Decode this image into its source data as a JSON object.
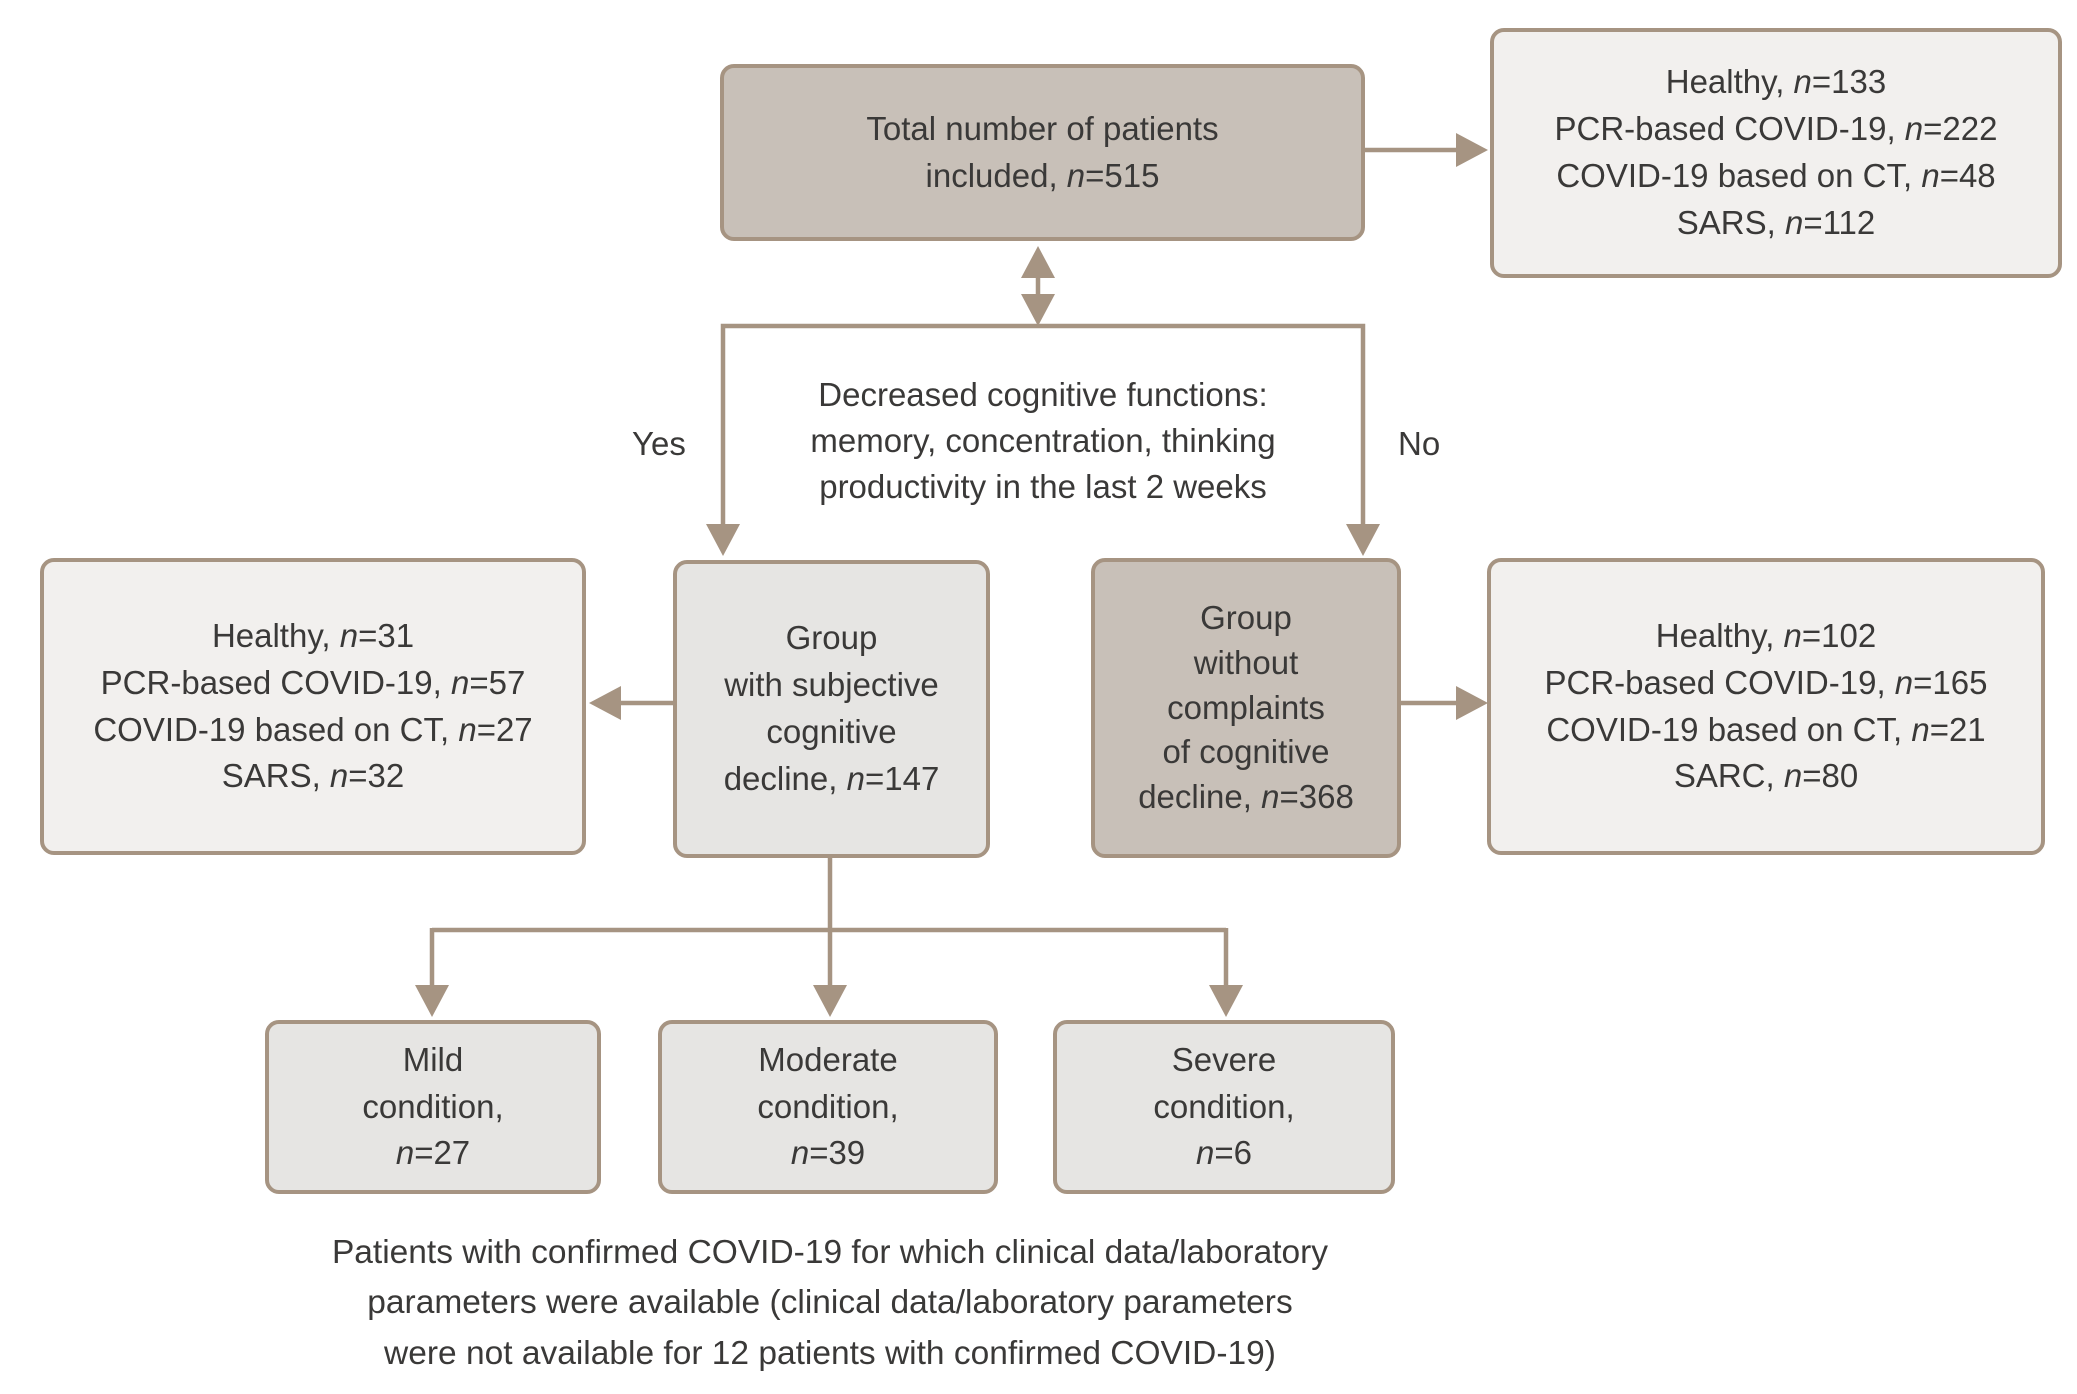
{
  "colors": {
    "line": "#a69482",
    "box_dark_fill": "#c8c0b8",
    "box_light_fill": "#f2f0ee",
    "box_mid_fill": "#e6e5e3",
    "text": "#3a3938"
  },
  "nodes": {
    "total": {
      "lines": [
        [
          {
            "t": "Total number of patients"
          }
        ],
        [
          {
            "t": "included, "
          },
          {
            "t": "n",
            "i": true
          },
          {
            "t": "=515"
          }
        ]
      ]
    },
    "breakdown_total": {
      "lines": [
        [
          {
            "t": "Healthy, "
          },
          {
            "t": "n",
            "i": true
          },
          {
            "t": "=133"
          }
        ],
        [
          {
            "t": "PCR-based COVID-19, "
          },
          {
            "t": "n",
            "i": true
          },
          {
            "t": "=222"
          }
        ],
        [
          {
            "t": "COVID-19 based on CT, "
          },
          {
            "t": "n",
            "i": true
          },
          {
            "t": "=48"
          }
        ],
        [
          {
            "t": "SARS, "
          },
          {
            "t": "n",
            "i": true
          },
          {
            "t": "=112"
          }
        ]
      ]
    },
    "decision": {
      "lines": [
        [
          {
            "t": "Decreased cognitive functions:"
          }
        ],
        [
          {
            "t": "memory, concentration, thinking"
          }
        ],
        [
          {
            "t": "productivity in the last 2 weeks"
          }
        ]
      ],
      "yes_label": "Yes",
      "no_label": "No"
    },
    "breakdown_with": {
      "lines": [
        [
          {
            "t": "Healthy, "
          },
          {
            "t": "n",
            "i": true
          },
          {
            "t": "=31"
          }
        ],
        [
          {
            "t": "PCR-based COVID-19, "
          },
          {
            "t": "n",
            "i": true
          },
          {
            "t": "=57"
          }
        ],
        [
          {
            "t": "COVID-19 based on CT, "
          },
          {
            "t": "n",
            "i": true
          },
          {
            "t": "=27"
          }
        ],
        [
          {
            "t": "SARS, "
          },
          {
            "t": "n",
            "i": true
          },
          {
            "t": "=32"
          }
        ]
      ]
    },
    "group_with": {
      "lines": [
        [
          {
            "t": "Group"
          }
        ],
        [
          {
            "t": "with subjective"
          }
        ],
        [
          {
            "t": "cognitive"
          }
        ],
        [
          {
            "t": "decline, "
          },
          {
            "t": "n",
            "i": true
          },
          {
            "t": "=147"
          }
        ]
      ]
    },
    "group_without": {
      "lines": [
        [
          {
            "t": "Group"
          }
        ],
        [
          {
            "t": "without"
          }
        ],
        [
          {
            "t": "complaints"
          }
        ],
        [
          {
            "t": "of cognitive"
          }
        ],
        [
          {
            "t": "decline, "
          },
          {
            "t": "n",
            "i": true
          },
          {
            "t": "=368"
          }
        ]
      ]
    },
    "breakdown_without": {
      "lines": [
        [
          {
            "t": "Healthy, "
          },
          {
            "t": "n",
            "i": true
          },
          {
            "t": "=102"
          }
        ],
        [
          {
            "t": "PCR-based COVID-19, "
          },
          {
            "t": "n",
            "i": true
          },
          {
            "t": "=165"
          }
        ],
        [
          {
            "t": "COVID-19 based on CT, "
          },
          {
            "t": "n",
            "i": true
          },
          {
            "t": "=21"
          }
        ],
        [
          {
            "t": "SARC, "
          },
          {
            "t": "n",
            "i": true
          },
          {
            "t": "=80"
          }
        ]
      ]
    },
    "mild": {
      "lines": [
        [
          {
            "t": "Mild"
          }
        ],
        [
          {
            "t": "condition,"
          }
        ],
        [
          {
            "t": "n",
            "i": true
          },
          {
            "t": "=27"
          }
        ]
      ]
    },
    "moderate": {
      "lines": [
        [
          {
            "t": "Moderate"
          }
        ],
        [
          {
            "t": "condition,"
          }
        ],
        [
          {
            "t": "n",
            "i": true
          },
          {
            "t": "=39"
          }
        ]
      ]
    },
    "severe": {
      "lines": [
        [
          {
            "t": "Severe"
          }
        ],
        [
          {
            "t": "condition,"
          }
        ],
        [
          {
            "t": "n",
            "i": true
          },
          {
            "t": "=6"
          }
        ]
      ]
    },
    "caption": {
      "lines": [
        [
          {
            "t": "Patients with confirmed COVID-19 for which clinical data/laboratory"
          }
        ],
        [
          {
            "t": "parameters were available (clinical data/laboratory parameters"
          }
        ],
        [
          {
            "t": "were not available for 12 patients with confirmed COVID-19)"
          }
        ]
      ]
    }
  },
  "edges": [
    {
      "from": "total",
      "to": "breakdown_total",
      "style": "arrow-right"
    },
    {
      "from": "total",
      "to": "decision",
      "style": "double-arrow"
    },
    {
      "from": "decision",
      "to": "group_with",
      "label": "Yes",
      "style": "arrow-down"
    },
    {
      "from": "decision",
      "to": "group_without",
      "label": "No",
      "style": "arrow-down"
    },
    {
      "from": "group_with",
      "to": "breakdown_with",
      "style": "arrow-left"
    },
    {
      "from": "group_without",
      "to": "breakdown_without",
      "style": "arrow-right"
    },
    {
      "from": "group_with",
      "to": "mild",
      "style": "arrow-down"
    },
    {
      "from": "group_with",
      "to": "moderate",
      "style": "arrow-down"
    },
    {
      "from": "group_with",
      "to": "severe",
      "style": "arrow-down"
    }
  ]
}
